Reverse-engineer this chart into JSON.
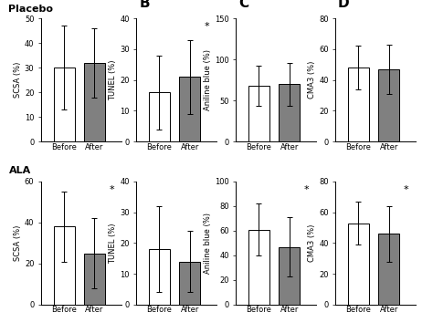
{
  "placebo": {
    "SCSA": {
      "ylabel": "SCSA (%)",
      "ylim": [
        0,
        50
      ],
      "yticks": [
        0,
        10,
        20,
        30,
        40,
        50
      ],
      "before_mean": 30,
      "after_mean": 32,
      "before_err": 17,
      "after_err": 14,
      "significant": false,
      "panel_label": ""
    },
    "TUNEL": {
      "ylabel": "TUNEL (%)",
      "ylim": [
        0,
        40
      ],
      "yticks": [
        0,
        10,
        20,
        30,
        40
      ],
      "before_mean": 16,
      "after_mean": 21,
      "before_err": 12,
      "after_err": 12,
      "significant": true,
      "panel_label": "B"
    },
    "Aniline": {
      "ylabel": "Aniline blue (%)",
      "ylim": [
        0,
        150
      ],
      "yticks": [
        0,
        50,
        100,
        150
      ],
      "before_mean": 68,
      "after_mean": 70,
      "before_err": 24,
      "after_err": 26,
      "significant": false,
      "panel_label": "C"
    },
    "CMA3": {
      "ylabel": "CMA3 (%)",
      "ylim": [
        0,
        80
      ],
      "yticks": [
        0,
        20,
        40,
        60,
        80
      ],
      "before_mean": 48,
      "after_mean": 47,
      "before_err": 14,
      "after_err": 16,
      "significant": false,
      "panel_label": "D"
    }
  },
  "ALA": {
    "SCSA": {
      "ylabel": "SCSA (%)",
      "ylim": [
        0,
        60
      ],
      "yticks": [
        0,
        20,
        40,
        60
      ],
      "before_mean": 38,
      "after_mean": 25,
      "before_err": 17,
      "after_err": 17,
      "significant": true,
      "panel_label": ""
    },
    "TUNEL": {
      "ylabel": "TUNEL (%)",
      "ylim": [
        0,
        40
      ],
      "yticks": [
        0,
        10,
        20,
        30,
        40
      ],
      "before_mean": 18,
      "after_mean": 14,
      "before_err": 14,
      "after_err": 10,
      "significant": false,
      "panel_label": ""
    },
    "Aniline": {
      "ylabel": "Aniline blue (%)",
      "ylim": [
        0,
        100
      ],
      "yticks": [
        0,
        20,
        40,
        60,
        80,
        100
      ],
      "before_mean": 61,
      "after_mean": 47,
      "before_err": 21,
      "after_err": 24,
      "significant": true,
      "panel_label": ""
    },
    "CMA3": {
      "ylabel": "CMA3 (%)",
      "ylim": [
        0,
        80
      ],
      "yticks": [
        0,
        20,
        40,
        60,
        80
      ],
      "before_mean": 53,
      "after_mean": 46,
      "before_err": 14,
      "after_err": 18,
      "significant": true,
      "panel_label": ""
    }
  },
  "bar_colors": [
    "white",
    "#808080"
  ],
  "bar_edgecolor": "black",
  "bar_width": 0.55,
  "group_labels": [
    "Before",
    "After"
  ],
  "background_color": "white",
  "fontsize_ylabel": 6,
  "fontsize_tick": 6,
  "fontsize_panel": 11,
  "fontsize_row": 8,
  "capsize": 2,
  "elinewidth": 0.7
}
